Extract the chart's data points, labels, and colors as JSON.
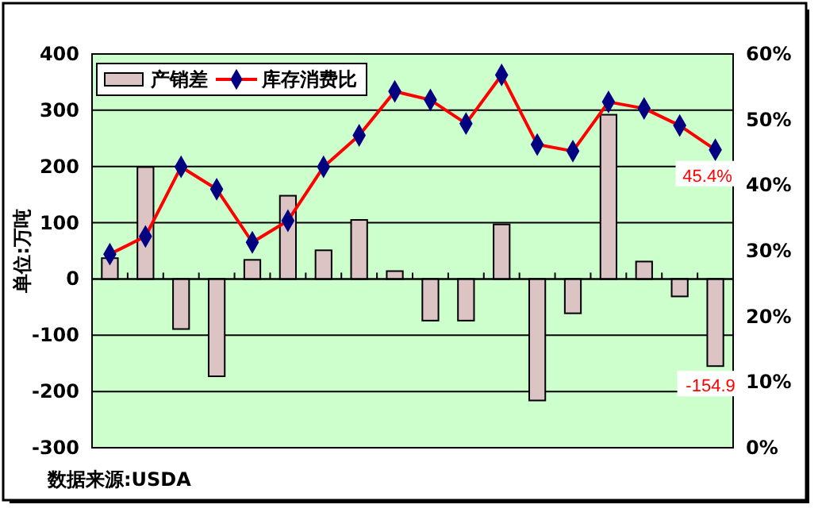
{
  "chart_data": {
    "type": "bar",
    "ylabel": "单位:万吨",
    "categories": [
      null,
      null,
      null,
      null,
      null,
      null,
      null,
      null,
      null,
      null,
      null,
      null,
      null,
      null,
      null,
      null,
      null,
      null
    ],
    "series": [
      {
        "name": "产销差",
        "color": "#dcc4c4",
        "values": [
          37,
          199,
          -89,
          -173,
          34,
          148,
          51,
          105,
          14,
          -74,
          -74,
          97,
          -216,
          -61,
          292,
          31,
          -31,
          -154.9
        ],
        "value_labels": [
          null,
          null,
          null,
          null,
          null,
          null,
          null,
          null,
          null,
          null,
          null,
          null,
          null,
          null,
          null,
          null,
          null,
          "-154.9"
        ]
      },
      {
        "name": "库存消费比",
        "type": "line",
        "axis": "y2",
        "color": "#ff0000",
        "marker": "diamond",
        "values": [
          29.5,
          32.2,
          42.8,
          39.4,
          31.3,
          34.6,
          42.8,
          47.6,
          54.3,
          53.0,
          49.4,
          56.8,
          46.2,
          45.2,
          52.7,
          51.7,
          49.1,
          45.4
        ],
        "value_labels": [
          null,
          null,
          null,
          null,
          null,
          null,
          null,
          null,
          null,
          null,
          null,
          null,
          null,
          null,
          null,
          null,
          null,
          "45.4%"
        ]
      }
    ],
    "ylim": [
      -300,
      400
    ],
    "yticks": [
      -300,
      -200,
      -100,
      0,
      100,
      200,
      300,
      400
    ],
    "y2lim": [
      0,
      60
    ],
    "y2ticks": [
      {
        "value": 0,
        "label": "0%"
      },
      {
        "value": 10,
        "label": "10%"
      },
      {
        "value": 20,
        "label": "20%"
      },
      {
        "value": 30,
        "label": "30%"
      },
      {
        "value": 40,
        "label": "40%"
      },
      {
        "value": 50,
        "label": "50%"
      },
      {
        "value": 60,
        "label": "60%"
      }
    ],
    "grid": "y",
    "legend": "top left",
    "annotations": [
      "数据来源:USDA"
    ]
  }
}
